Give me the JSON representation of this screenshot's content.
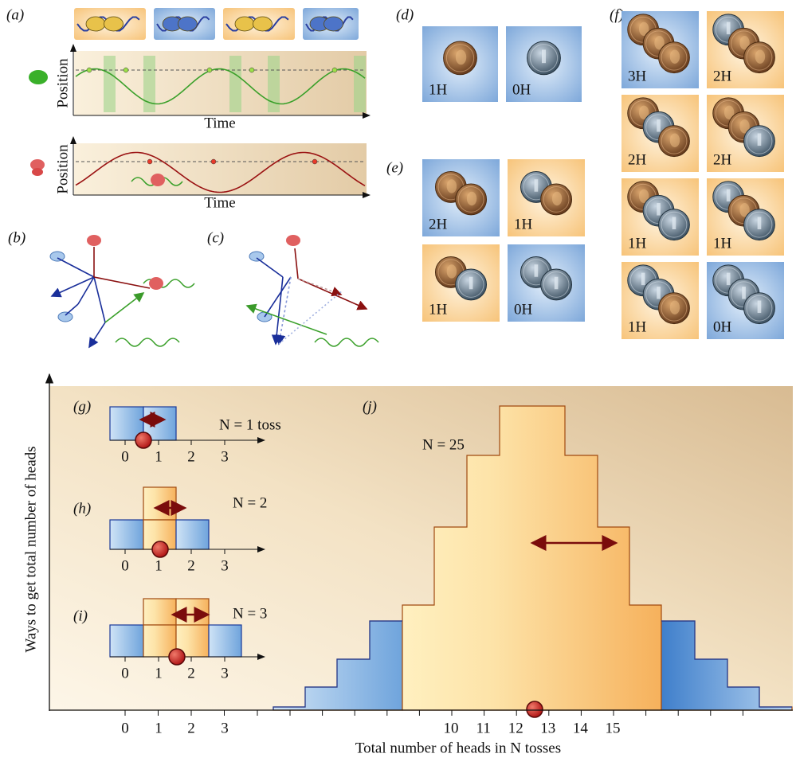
{
  "panel_a": {
    "label": "(a)",
    "plot1": {
      "y_label": "Position",
      "x_label": "Time"
    },
    "plot2": {
      "y_label": "Position",
      "x_label": "Time"
    }
  },
  "panel_b": {
    "label": "(b)"
  },
  "panel_c": {
    "label": "(c)"
  },
  "panel_d": {
    "label": "(d)",
    "tiles": [
      "1H",
      "0H"
    ]
  },
  "panel_e": {
    "label": "(e)",
    "tiles": [
      "2H",
      "1H",
      "1H",
      "0H"
    ]
  },
  "panel_f": {
    "label": "(f)",
    "tiles": [
      "3H",
      "2H",
      "2H",
      "2H",
      "1H",
      "1H",
      "1H",
      "0H"
    ]
  },
  "panel_g": {
    "label": "(g)",
    "title": "N = 1 toss",
    "ticks": [
      0,
      1,
      2,
      3
    ]
  },
  "panel_h": {
    "label": "(h)",
    "title": "N = 2",
    "ticks": [
      0,
      1,
      2,
      3
    ]
  },
  "panel_i": {
    "label": "(i)",
    "title": "N = 3",
    "ticks": [
      0,
      1,
      2,
      3
    ]
  },
  "panel_j": {
    "label": "(j)",
    "title": "N = 25"
  },
  "axes": {
    "y_label": "Ways to get total number of heads",
    "x_label": "Total number of heads in N tosses",
    "ticks_left": [
      0,
      1,
      2,
      3
    ],
    "ticks_right": [
      10,
      11,
      12,
      13,
      14,
      15
    ]
  }
}
